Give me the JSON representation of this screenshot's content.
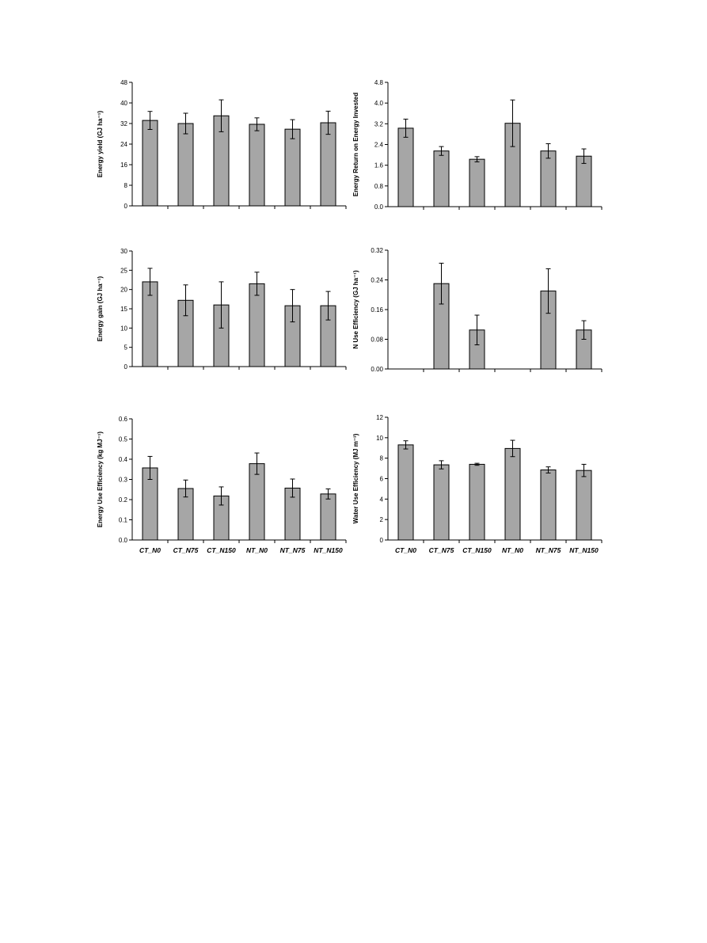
{
  "chart_data": [
    {
      "type": "bar",
      "ylabel": "Energy yield (GJ ha⁻¹)",
      "ylim": [
        0,
        48
      ],
      "yticks": [
        "0",
        "8",
        "16",
        "24",
        "32",
        "40",
        "48"
      ],
      "categories": [
        "CT_N0",
        "CT_N75",
        "CT_N150",
        "NT_N0",
        "NT_N75",
        "NT_N150"
      ],
      "show_xlabels": false,
      "values": [
        33.2,
        32.0,
        35.0,
        31.7,
        29.8,
        32.3
      ],
      "errors": [
        3.5,
        4.0,
        6.2,
        2.5,
        3.7,
        4.5
      ],
      "bar_color": "#a6a6a6"
    },
    {
      "type": "bar",
      "ylabel": "Energy Return on Energy Invested",
      "ylim": [
        0,
        4.8
      ],
      "yticks": [
        "0.0",
        "0.8",
        "1.6",
        "2.4",
        "3.2",
        "4.0",
        "4.8"
      ],
      "categories": [
        "CT_N0",
        "CT_N75",
        "CT_N150",
        "NT_N0",
        "NT_N75",
        "NT_N150"
      ],
      "show_xlabels": false,
      "values": [
        3.03,
        2.15,
        1.83,
        3.22,
        2.15,
        1.95
      ],
      "errors": [
        0.35,
        0.17,
        0.1,
        0.9,
        0.28,
        0.28
      ],
      "bar_color": "#a6a6a6"
    },
    {
      "type": "bar",
      "ylabel": "Energy gain (GJ ha⁻¹)",
      "ylim": [
        0,
        30
      ],
      "yticks": [
        "0",
        "5",
        "10",
        "15",
        "20",
        "25",
        "30"
      ],
      "categories": [
        "CT_N0",
        "CT_N75",
        "CT_N150",
        "NT_N0",
        "NT_N75",
        "NT_N150"
      ],
      "show_xlabels": false,
      "values": [
        22.0,
        17.2,
        16.0,
        21.5,
        15.8,
        15.8
      ],
      "errors": [
        3.5,
        4.0,
        6.0,
        3.0,
        4.2,
        3.7
      ],
      "bar_color": "#a6a6a6"
    },
    {
      "type": "bar",
      "ylabel": "N Use Efficiency (GJ ha⁻¹)",
      "ylim": [
        0,
        0.32
      ],
      "yticks": [
        "0.00",
        "0.08",
        "0.16",
        "0.24",
        "0.32"
      ],
      "categories": [
        "CT_N0",
        "CT_N75",
        "CT_N150",
        "NT_N0",
        "NT_N75",
        "NT_N150"
      ],
      "show_xlabels": false,
      "values": [
        null,
        0.23,
        0.105,
        null,
        0.21,
        0.105
      ],
      "errors": [
        null,
        0.055,
        0.04,
        null,
        0.06,
        0.025
      ],
      "bar_color": "#a6a6a6"
    },
    {
      "type": "bar",
      "ylabel": "Energy Use Efficiency (kg MJ⁻¹)",
      "ylim": [
        0,
        0.6
      ],
      "yticks": [
        "0.0",
        "0.1",
        "0.2",
        "0.3",
        "0.4",
        "0.5",
        "0.6"
      ],
      "categories": [
        "CT_N0",
        "CT_N75",
        "CT_N150",
        "NT_N0",
        "NT_N75",
        "NT_N150"
      ],
      "show_xlabels": true,
      "values": [
        0.357,
        0.255,
        0.218,
        0.378,
        0.257,
        0.228
      ],
      "errors": [
        0.057,
        0.042,
        0.045,
        0.053,
        0.045,
        0.025
      ],
      "bar_color": "#a6a6a6"
    },
    {
      "type": "bar",
      "ylabel": "Water Use Efficiency (MJ m⁻³)",
      "ylim": [
        0,
        12
      ],
      "yticks": [
        "0",
        "2",
        "4",
        "6",
        "8",
        "10",
        "12"
      ],
      "categories": [
        "CT_N0",
        "CT_N75",
        "CT_N150",
        "NT_N0",
        "NT_N75",
        "NT_N150"
      ],
      "show_xlabels": true,
      "values": [
        9.3,
        7.35,
        7.4,
        8.95,
        6.85,
        6.8
      ],
      "errors": [
        0.4,
        0.4,
        0.1,
        0.8,
        0.3,
        0.6
      ],
      "bar_color": "#a6a6a6"
    }
  ]
}
